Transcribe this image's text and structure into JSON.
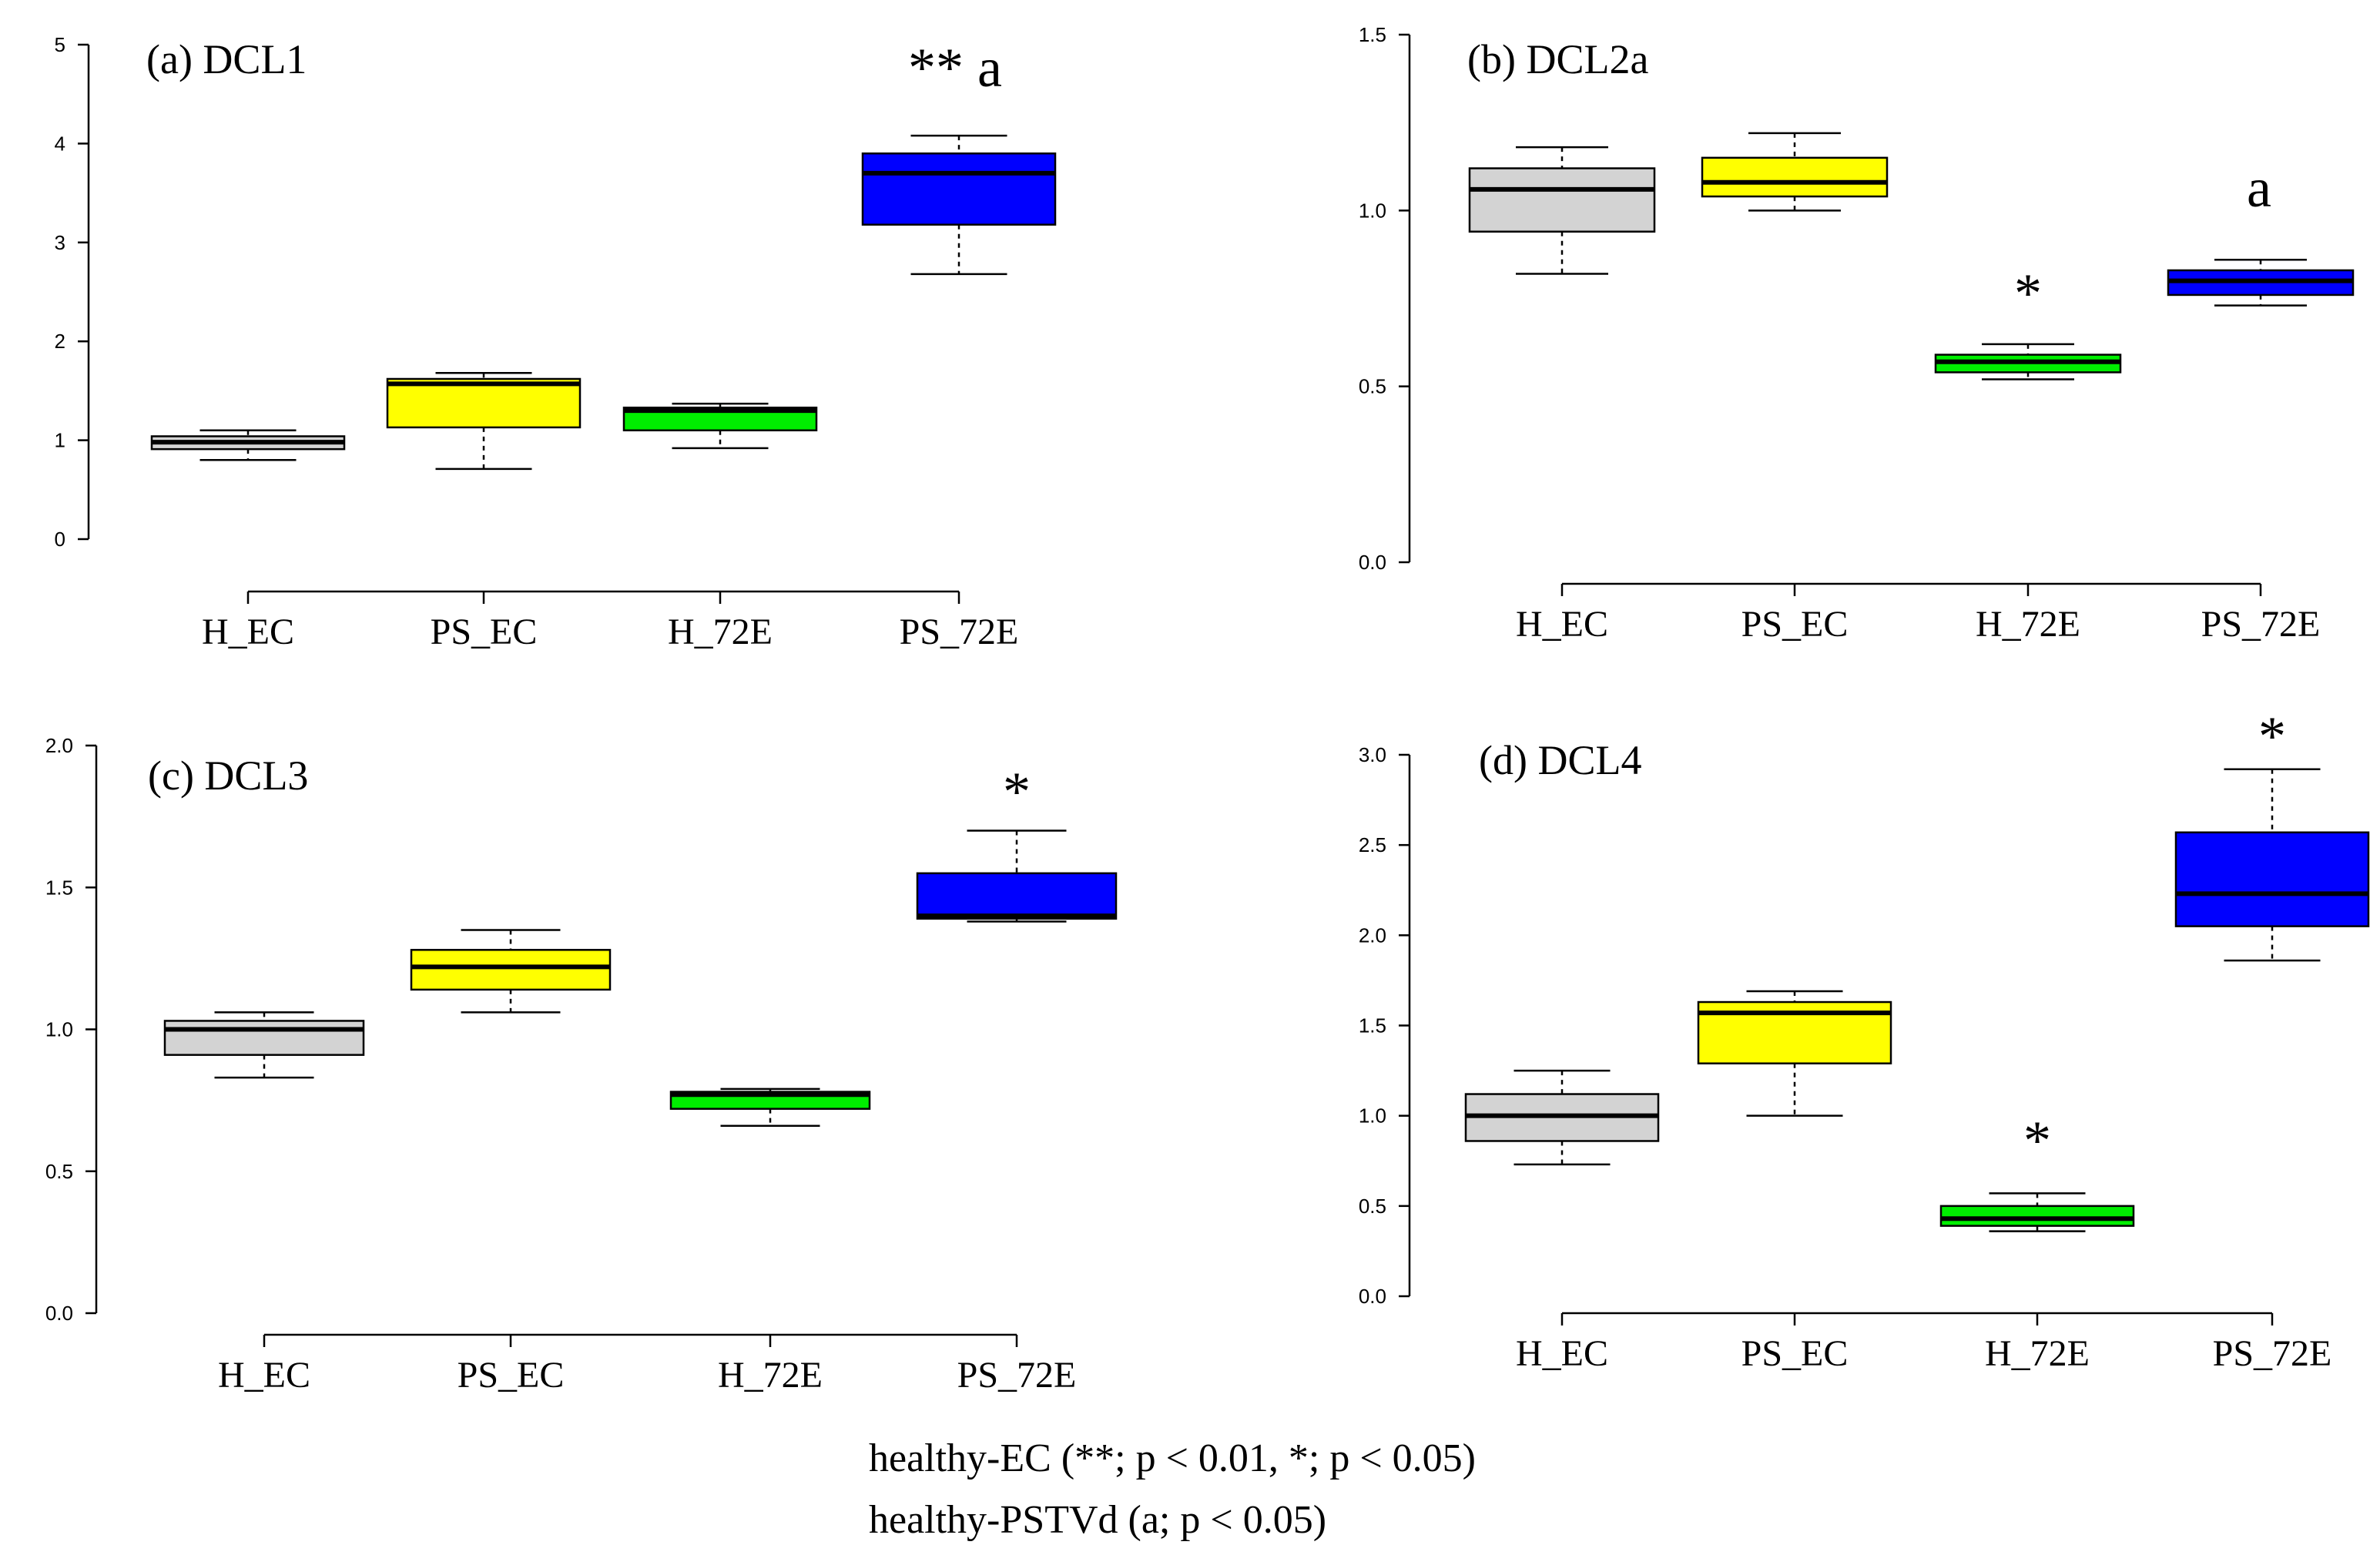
{
  "chart_data": [
    {
      "type": "boxplot",
      "title": "(a) DCL1",
      "annotation_label": "** a",
      "annotation_category": 3,
      "categories": [
        "H_EC",
        "PS_EC",
        "H_72E",
        "PS_72E"
      ],
      "colors": [
        "#d3d3d3",
        "#ffff00",
        "#00ee00",
        "#0000ff"
      ],
      "ylim": [
        0,
        5
      ],
      "yticks": [
        0,
        1,
        2,
        3,
        4,
        5
      ],
      "ytick_labels": [
        "0",
        "1",
        "2",
        "3",
        "4",
        "5"
      ],
      "boxes": [
        {
          "min": 0.8,
          "q1": 0.91,
          "median": 0.98,
          "q3": 1.04,
          "max": 1.1
        },
        {
          "min": 0.71,
          "q1": 1.13,
          "median": 1.57,
          "q3": 1.62,
          "max": 1.68
        },
        {
          "min": 0.92,
          "q1": 1.1,
          "median": 1.3,
          "q3": 1.33,
          "max": 1.37
        },
        {
          "min": 2.68,
          "q1": 3.18,
          "median": 3.7,
          "q3": 3.9,
          "max": 4.08
        }
      ]
    },
    {
      "type": "boxplot",
      "title": "(b) DCL2a",
      "annotation_label": "a",
      "annotation_category": 3,
      "annotation2_label": "*",
      "annotation2_category": 2,
      "categories": [
        "H_EC",
        "PS_EC",
        "H_72E",
        "PS_72E"
      ],
      "colors": [
        "#d3d3d3",
        "#ffff00",
        "#00ee00",
        "#0000ff"
      ],
      "ylim": [
        0,
        1.5
      ],
      "yticks": [
        0,
        0.5,
        1,
        1.5
      ],
      "ytick_labels": [
        "0.0",
        "0.5",
        "1.0",
        "1.5"
      ],
      "boxes": [
        {
          "min": 0.82,
          "q1": 0.94,
          "median": 1.06,
          "q3": 1.12,
          "max": 1.18
        },
        {
          "min": 1.0,
          "q1": 1.04,
          "median": 1.08,
          "q3": 1.15,
          "max": 1.22
        },
        {
          "min": 0.52,
          "q1": 0.54,
          "median": 0.57,
          "q3": 0.59,
          "max": 0.62
        },
        {
          "min": 0.73,
          "q1": 0.76,
          "median": 0.8,
          "q3": 0.83,
          "max": 0.86
        }
      ]
    },
    {
      "type": "boxplot",
      "title": "(c) DCL3",
      "annotation_label": "*",
      "annotation_category": 3,
      "categories": [
        "H_EC",
        "PS_EC",
        "H_72E",
        "PS_72E"
      ],
      "colors": [
        "#d3d3d3",
        "#ffff00",
        "#00ee00",
        "#0000ff"
      ],
      "ylim": [
        0,
        2
      ],
      "yticks": [
        0,
        0.5,
        1,
        1.5,
        2
      ],
      "ytick_labels": [
        "0.0",
        "0.5",
        "1.0",
        "1.5",
        "2.0"
      ],
      "boxes": [
        {
          "min": 0.83,
          "q1": 0.91,
          "median": 1.0,
          "q3": 1.03,
          "max": 1.06
        },
        {
          "min": 1.06,
          "q1": 1.14,
          "median": 1.22,
          "q3": 1.28,
          "max": 1.35
        },
        {
          "min": 0.66,
          "q1": 0.72,
          "median": 0.77,
          "q3": 0.78,
          "max": 0.79
        },
        {
          "min": 1.38,
          "q1": 1.39,
          "median": 1.4,
          "q3": 1.55,
          "max": 1.7
        }
      ]
    },
    {
      "type": "boxplot",
      "title": "(d) DCL4",
      "annotation_label": "*",
      "annotation_category": 3,
      "annotation2_label": "*",
      "annotation2_category": 2,
      "categories": [
        "H_EC",
        "PS_EC",
        "H_72E",
        "PS_72E"
      ],
      "colors": [
        "#d3d3d3",
        "#ffff00",
        "#00ee00",
        "#0000ff"
      ],
      "ylim": [
        0,
        3
      ],
      "yticks": [
        0,
        0.5,
        1,
        1.5,
        2,
        2.5,
        3
      ],
      "ytick_labels": [
        "0.0",
        "0.5",
        "1.0",
        "1.5",
        "2.0",
        "2.5",
        "3.0"
      ],
      "boxes": [
        {
          "min": 0.73,
          "q1": 0.86,
          "median": 1.0,
          "q3": 1.12,
          "max": 1.25
        },
        {
          "min": 1.0,
          "q1": 1.29,
          "median": 1.57,
          "q3": 1.63,
          "max": 1.69
        },
        {
          "min": 0.36,
          "q1": 0.39,
          "median": 0.43,
          "q3": 0.5,
          "max": 0.57
        },
        {
          "min": 1.86,
          "q1": 2.05,
          "median": 2.23,
          "q3": 2.57,
          "max": 2.92
        }
      ]
    }
  ],
  "legend": {
    "line1": "healthy-EC (**; p < 0.01, *; p < 0.05)",
    "line2": "healthy-PSTVd (a; p < 0.05)"
  }
}
